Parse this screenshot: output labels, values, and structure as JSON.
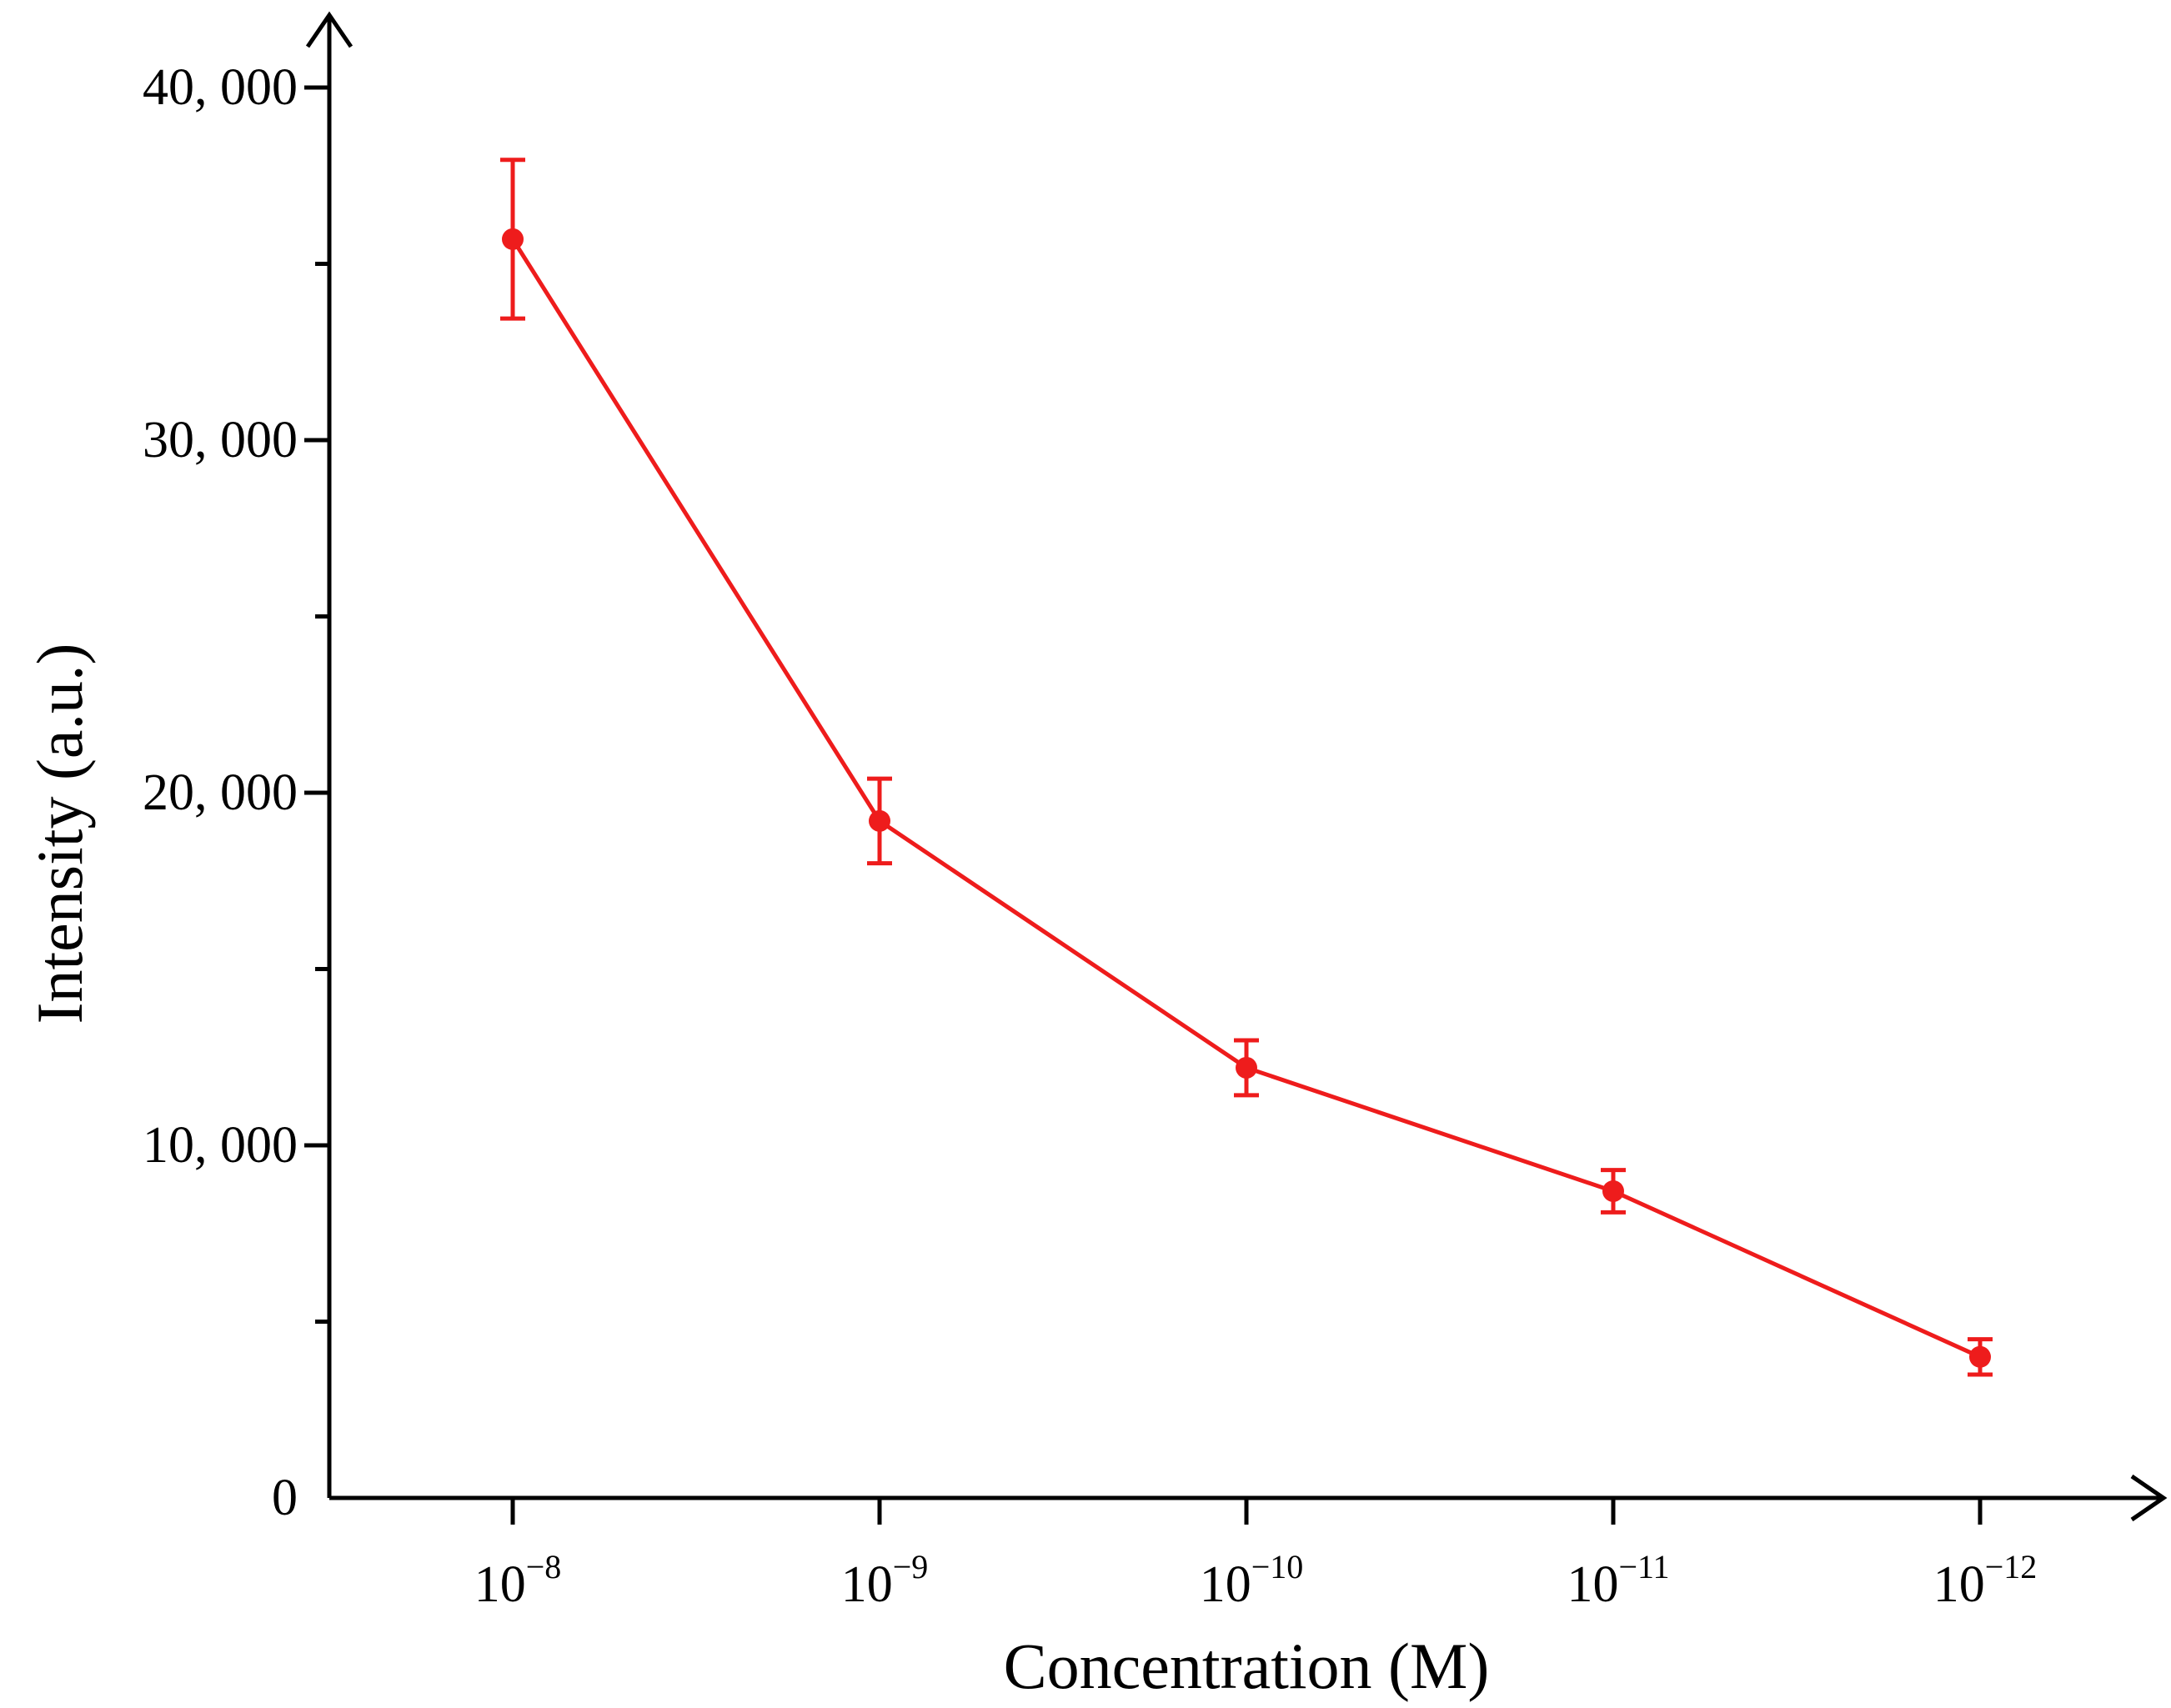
{
  "chart_data": {
    "type": "line",
    "title": "",
    "xlabel": "Concentration (M)",
    "ylabel": "Intensity (a.u.)",
    "ylim": [
      0,
      40000
    ],
    "yticks": [
      {
        "value": 0,
        "label": "0"
      },
      {
        "value": 10000,
        "label": "10, 000"
      },
      {
        "value": 20000,
        "label": "20, 000"
      },
      {
        "value": 30000,
        "label": "30, 000"
      },
      {
        "value": 40000,
        "label": "40, 000"
      }
    ],
    "categories": [
      {
        "base": "10",
        "exp": "−8"
      },
      {
        "base": "10",
        "exp": "−9"
      },
      {
        "base": "10",
        "exp": "−10"
      },
      {
        "base": "10",
        "exp": "−11"
      },
      {
        "base": "10",
        "exp": "−12"
      }
    ],
    "series": [
      {
        "name": "Intensity",
        "color": "#ee1c1c",
        "values": [
          35700,
          19200,
          12200,
          8700,
          4000
        ],
        "errors": [
          2250,
          1200,
          780,
          600,
          500
        ]
      }
    ],
    "grid": false,
    "legend": "none"
  }
}
